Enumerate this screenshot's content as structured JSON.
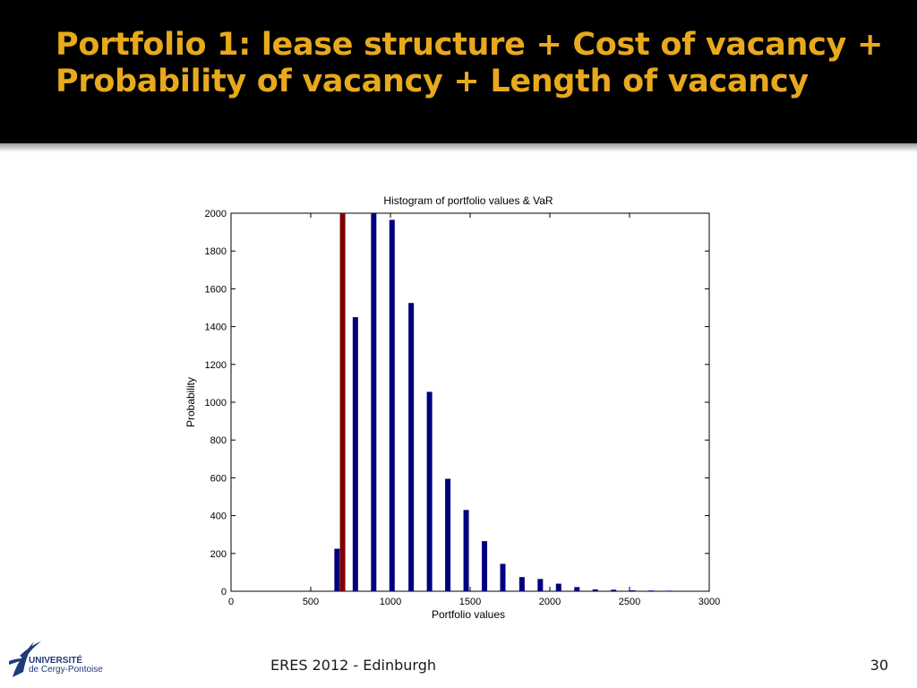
{
  "slide": {
    "title": "Portfolio 1: lease structure + Cost of vacancy + Probability of vacancy + Length of vacancy",
    "footer": "ERES 2012 - Edinburgh",
    "page_number": "30",
    "title_color": "#e8a91d",
    "header_background": "#000000"
  },
  "logo": {
    "line1": "UNIVERSITÉ",
    "line2": "de Cergy-Pontoise",
    "icon": "stylized-bird-logo-icon",
    "color": "#1e3a7a"
  },
  "chart_data": {
    "type": "bar",
    "title": "Histogram of portfolio values & VaR",
    "xlabel": "Portfolio values",
    "ylabel": "Probability",
    "xlim": [
      0,
      3000
    ],
    "ylim": [
      0,
      2000
    ],
    "xticks": [
      0,
      500,
      1000,
      1500,
      2000,
      2500,
      3000
    ],
    "yticks": [
      0,
      200,
      400,
      600,
      800,
      1000,
      1200,
      1400,
      1600,
      1800,
      2000
    ],
    "grid": false,
    "series": [
      {
        "color": "#00007f",
        "x": [
          665,
          780,
          895,
          1010,
          1130,
          1245,
          1360,
          1475,
          1590,
          1705,
          1825,
          1940,
          2055,
          2170,
          2285,
          2400,
          2520,
          2635,
          2750,
          2865
        ],
        "values": [
          225,
          1450,
          2000,
          1965,
          1525,
          1055,
          595,
          430,
          265,
          145,
          75,
          65,
          40,
          22,
          10,
          8,
          5,
          4,
          3,
          2
        ]
      },
      {
        "color": "#7f0000",
        "x": [
          700
        ],
        "values": [
          2000
        ]
      }
    ]
  }
}
